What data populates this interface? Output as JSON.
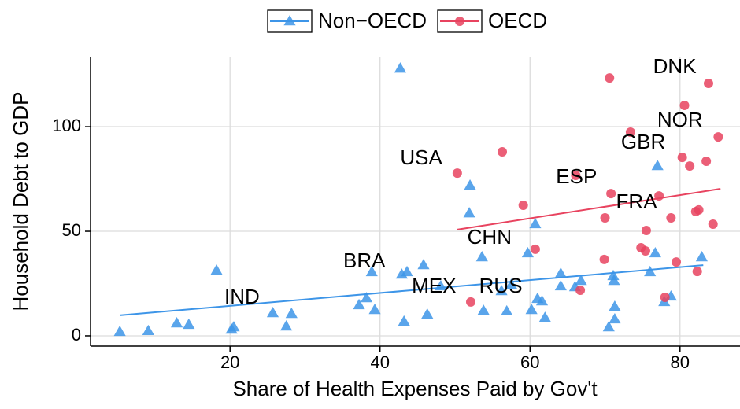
{
  "chart_data": {
    "type": "scatter",
    "xlabel": "Share of Health Expenses Paid by Gov't",
    "ylabel": "Household Debt to GDP",
    "xlim": [
      1.4,
      88
    ],
    "ylim": [
      -4.9,
      133.5
    ],
    "xticks": [
      20,
      40,
      60,
      80
    ],
    "yticks": [
      0,
      50,
      100
    ],
    "grid": true,
    "legend": "top",
    "series": [
      {
        "name": "Non−OECD",
        "color": "#3d95e8",
        "marker": "triangle",
        "x": [
          5.3,
          9.1,
          12.9,
          14.5,
          18.2,
          20.2,
          20.5,
          25.7,
          27.5,
          28.2,
          37.2,
          38.2,
          38.9,
          39.3,
          42.7,
          42.9,
          43.2,
          43.6,
          45.8,
          46.3,
          48.1,
          52.0,
          51.9,
          53.6,
          53.8,
          56.2,
          56.9,
          57.5,
          59.7,
          60.2,
          60.7,
          61.0,
          61.6,
          62.0,
          64.1,
          64.1,
          66.0,
          66.8,
          70.5,
          71.1,
          71.2,
          71.3,
          71.3,
          77.0,
          76.0,
          76.7,
          77.9,
          78.8,
          82.9
        ],
        "values": [
          1.9,
          2.3,
          6.0,
          5.3,
          31.2,
          3.0,
          4.1,
          10.9,
          4.5,
          10.5,
          14.7,
          18.0,
          30.5,
          12.4,
          127.8,
          29.3,
          6.8,
          30.5,
          33.8,
          10.2,
          23.7,
          71.8,
          58.6,
          37.6,
          12.0,
          21.4,
          11.7,
          24.4,
          39.5,
          12.4,
          53.4,
          17.7,
          16.5,
          8.6,
          29.7,
          23.7,
          23.3,
          26.3,
          4.1,
          28.6,
          26.3,
          13.9,
          7.9,
          81.2,
          30.5,
          39.5,
          16.2,
          18.8,
          37.6
        ],
        "trend": {
          "x": [
            5.3,
            83.1
          ],
          "values": [
            9.8,
            33.8
          ]
        }
      },
      {
        "name": "OECD",
        "color": "#e8435f",
        "marker": "circle",
        "x": [
          50.3,
          52.1,
          56.3,
          59.1,
          60.7,
          66.1,
          66.7,
          69.9,
          70.0,
          70.6,
          70.8,
          73.4,
          74.8,
          75.4,
          75.5,
          77.2,
          78.0,
          78.8,
          79.5,
          80.3,
          80.6,
          81.3,
          82.1,
          82.5,
          82.3,
          83.5,
          83.8,
          84.4,
          85.1
        ],
        "values": [
          77.8,
          16.2,
          88.0,
          62.4,
          41.4,
          76.7,
          21.8,
          36.5,
          56.4,
          123.3,
          68.0,
          97.4,
          42.1,
          40.6,
          50.4,
          66.9,
          18.4,
          56.4,
          35.3,
          85.3,
          110.2,
          81.2,
          59.4,
          60.2,
          30.8,
          83.5,
          120.7,
          53.4,
          95.1
        ],
        "trend": {
          "x": [
            50.3,
            85.4
          ],
          "values": [
            50.8,
            70.3
          ]
        }
      }
    ],
    "annotations": [
      {
        "text": "DNK",
        "x": 79.3,
        "y": 128.2
      },
      {
        "text": "NOR",
        "x": 80.0,
        "y": 102.6
      },
      {
        "text": "GBR",
        "x": 75.1,
        "y": 92.1
      },
      {
        "text": "USA",
        "x": 45.5,
        "y": 84.6
      },
      {
        "text": "ESP",
        "x": 66.2,
        "y": 75.6
      },
      {
        "text": "FRA",
        "x": 74.2,
        "y": 63.5
      },
      {
        "text": "CHN",
        "x": 54.6,
        "y": 46.6
      },
      {
        "text": "BRA",
        "x": 37.9,
        "y": 35.3
      },
      {
        "text": "MEX",
        "x": 47.2,
        "y": 23.3
      },
      {
        "text": "RUS",
        "x": 56.1,
        "y": 23.3
      },
      {
        "text": "IND",
        "x": 21.6,
        "y": 18.0
      }
    ]
  }
}
